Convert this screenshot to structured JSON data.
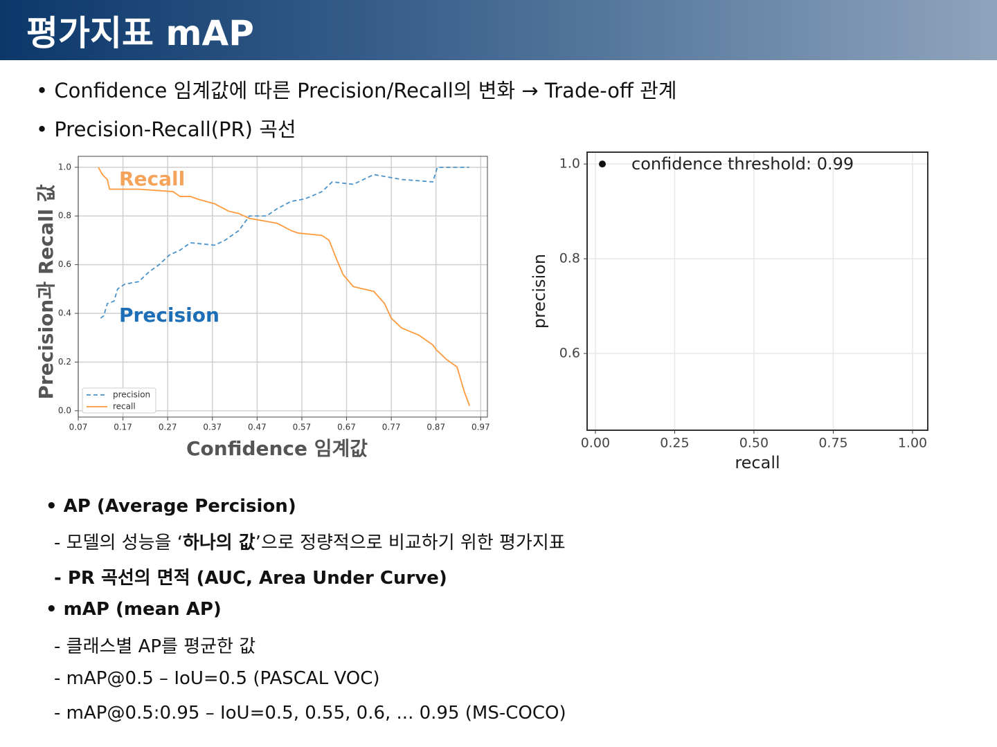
{
  "title": "평가지표 mAP",
  "bullets": [
    "Confidence 임계값에 따른 Precision/Recall의 변화 → Trade-off 관계",
    "Precision-Recall(PR) 곡선"
  ],
  "ap": {
    "heading": "AP (Average Percision)",
    "line1": [
      "- 모델의 성능을 ‘",
      "하나의 값",
      "’으로 정량적으로 비교하기 위한 평가지표"
    ],
    "line2": "- PR 곡선의 면적 (AUC, Area Under Curve)"
  },
  "map": {
    "heading": "mAP (mean AP)",
    "lines": [
      "- 클래스별 AP를 평균한 값",
      "- mAP@0.5 – IoU=0.5 (PASCAL VOC)",
      "- mAP@0.5:0.95 – IoU=0.5, 0.55, 0.6, ... 0.95  (MS-COCO)"
    ]
  },
  "chart_data": [
    {
      "type": "line",
      "x_label": "Confidence 임계값",
      "y_label": "Precision과 Recall 값",
      "xlim": [
        0.07,
        0.985
      ],
      "ylim": [
        -0.026,
        1.045
      ],
      "xticks": [
        0.07,
        0.17,
        0.27,
        0.37,
        0.47,
        0.57,
        0.67,
        0.77,
        0.87,
        0.97
      ],
      "yticks": [
        {
          "value": 0,
          "label": "0.0"
        },
        0.2,
        0.4,
        0.6,
        0.8,
        {
          "value": 1,
          "label": "1.0"
        }
      ],
      "grid": true,
      "legend": "lower left",
      "annotations": [
        {
          "text": "Recall",
          "color": "#f5a35a"
        },
        {
          "text": "Precision",
          "color": "#1c6fb6"
        }
      ],
      "series": [
        {
          "name": "precision",
          "color": "#4a92c9",
          "linestyle": "dashed",
          "x": [
            0.12,
            0.127,
            0.135,
            0.15,
            0.158,
            0.174,
            0.205,
            0.228,
            0.251,
            0.274,
            0.298,
            0.321,
            0.375,
            0.398,
            0.429,
            0.453,
            0.491,
            0.515,
            0.546,
            0.577,
            0.615,
            0.638,
            0.685,
            0.731,
            0.793,
            0.863,
            0.873,
            0.944
          ],
          "values": [
            0.38,
            0.39,
            0.44,
            0.45,
            0.5,
            0.52,
            0.53,
            0.57,
            0.6,
            0.64,
            0.66,
            0.69,
            0.68,
            0.7,
            0.74,
            0.8,
            0.8,
            0.83,
            0.86,
            0.87,
            0.9,
            0.94,
            0.93,
            0.97,
            0.95,
            0.94,
            1.0,
            1.0
          ]
        },
        {
          "name": "recall",
          "color": "#ff9a3c",
          "linestyle": "solid",
          "x": [
            0.115,
            0.124,
            0.135,
            0.14,
            0.205,
            0.282,
            0.298,
            0.321,
            0.336,
            0.375,
            0.406,
            0.429,
            0.453,
            0.484,
            0.515,
            0.546,
            0.561,
            0.615,
            0.631,
            0.646,
            0.662,
            0.685,
            0.731,
            0.755,
            0.77,
            0.793,
            0.832,
            0.863,
            0.871,
            0.894,
            0.917,
            0.933,
            0.945
          ],
          "values": [
            1.0,
            0.97,
            0.95,
            0.91,
            0.91,
            0.9,
            0.88,
            0.88,
            0.87,
            0.85,
            0.82,
            0.81,
            0.79,
            0.78,
            0.77,
            0.74,
            0.73,
            0.72,
            0.7,
            0.63,
            0.56,
            0.51,
            0.49,
            0.44,
            0.38,
            0.34,
            0.31,
            0.27,
            0.25,
            0.21,
            0.18,
            0.08,
            0.02
          ]
        }
      ]
    },
    {
      "type": "scatter",
      "x_label": "recall",
      "y_label": "precision",
      "xlim": [
        -0.026,
        1.048
      ],
      "ylim": [
        0.438,
        1.025
      ],
      "xticks": [
        {
          "value": 0,
          "label": "0.00"
        },
        0.25,
        {
          "value": 0.5,
          "label": "0.50"
        },
        0.75,
        {
          "value": 1,
          "label": "1.00"
        }
      ],
      "yticks": [
        0.6,
        0.8,
        {
          "value": 1,
          "label": "1.0"
        }
      ],
      "grid": true,
      "color": "#111111",
      "annotations": [
        {
          "text": "confidence threshold: 0.99",
          "color": "#222222"
        }
      ],
      "x": [
        0.022
      ],
      "values": [
        1.0
      ]
    }
  ]
}
